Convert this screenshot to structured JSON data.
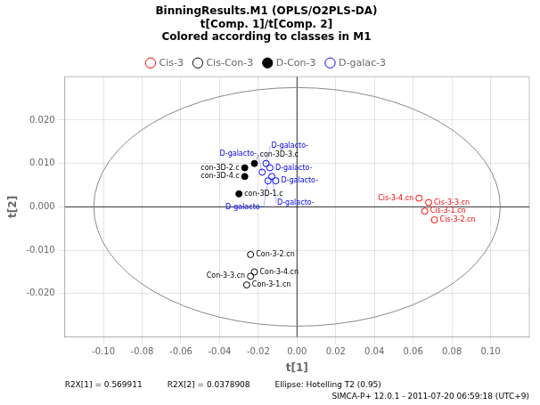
{
  "chart_data": {
    "type": "scatter",
    "title": [
      "BinningResults.M1 (OPLS/O2PLS-DA)",
      "t[Comp. 1]/t[Comp. 2]",
      "Colored according to classes in M1"
    ],
    "x_label": "t[1]",
    "y_label": "t[2]",
    "xlim": [
      -0.12,
      0.12
    ],
    "ylim": [
      -0.03,
      0.03
    ],
    "xticks": [
      {
        "value": -0.1,
        "label": "-0.10"
      },
      {
        "value": -0.08,
        "label": "-0.08"
      },
      {
        "value": -0.06,
        "label": "-0.06"
      },
      {
        "value": -0.04,
        "label": "-0.04"
      },
      {
        "value": -0.02,
        "label": "-0.02"
      },
      {
        "value": 0,
        "label": "0.00"
      },
      {
        "value": 0.02,
        "label": "0.02"
      },
      {
        "value": 0.04,
        "label": "0.04"
      },
      {
        "value": 0.06,
        "label": "0.06"
      },
      {
        "value": 0.08,
        "label": "0.08"
      },
      {
        "value": 0.1,
        "label": "0.10"
      }
    ],
    "yticks": [
      {
        "value": -0.02,
        "label": "-0.020"
      },
      {
        "value": -0.01,
        "label": "-0.010"
      },
      {
        "value": 0,
        "label": "0.000"
      },
      {
        "value": 0.01,
        "label": "0.010"
      },
      {
        "value": 0.02,
        "label": "0.020"
      }
    ],
    "grid": true,
    "legend": "top",
    "series": [
      {
        "name": "Cis-3",
        "color": "red",
        "marker": "open_circle",
        "x": [
          0.063,
          0.068,
          0.066,
          0.071
        ],
        "values": [
          0.002,
          0.001,
          -0.001,
          -0.003
        ],
        "point_labels": [
          "Cis-3-4.cn",
          "Cis-3-3.cn",
          "Cis-3-1.cn",
          "Cis-3-2.cn"
        ]
      },
      {
        "name": "Cis-Con-3",
        "color": "black",
        "marker": "open_circle",
        "x": [
          -0.024,
          -0.022,
          -0.024,
          -0.026
        ],
        "values": [
          -0.011,
          -0.015,
          -0.016,
          -0.018
        ],
        "point_labels": [
          "Con-3-2.cn",
          "Con-3-4.cn",
          "Con-3-3.cn",
          "Con-3-1.cn"
        ]
      },
      {
        "name": "D-Con-3",
        "color": "black",
        "marker": "circle",
        "x": [
          -0.022,
          -0.027,
          -0.027,
          -0.03
        ],
        "values": [
          0.01,
          0.009,
          0.007,
          0.003
        ],
        "point_labels": [
          "con-3D-3.c",
          "con-3D-2.c",
          "con-3D-4.c",
          "con-3D-1.c"
        ]
      },
      {
        "name": "D-galac-3",
        "color": "blue",
        "marker": "open_circle",
        "x": [
          -0.016,
          -0.014,
          -0.013,
          -0.011,
          -0.018,
          -0.015
        ],
        "values": [
          0.01,
          0.009,
          0.007,
          0.006,
          0.008,
          0.006
        ],
        "point_labels": [
          "D-galacto-",
          "D-galacto-",
          "D-galacto-",
          "D-galacto-",
          "D-galacto-",
          "D-galacto-"
        ]
      }
    ],
    "ellipse": {
      "cx": 0.0,
      "cy": 0.0,
      "width": 0.21,
      "height": 0.055,
      "color": "#888888"
    },
    "reference_lines": {
      "x": [
        0
      ],
      "y": [
        0
      ]
    },
    "annotations": [
      "R2X[1] = 0.569911",
      "R2X[2] = 0.0378908",
      "Ellipse: Hotelling T2 (0.95)",
      "SIMCA-P+ 12.0.1 - 2011-07-20 06:59:18 (UTC+9)"
    ]
  }
}
